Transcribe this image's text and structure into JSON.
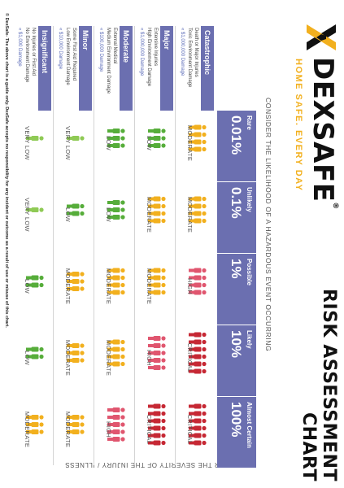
{
  "brand": {
    "name": "DEXSAFE",
    "registered": "®",
    "tagline": "HOME SAFE. EVERY DAY",
    "colors": {
      "accent": "#f2b01e",
      "dark": "#111111"
    }
  },
  "title": "RISK ASSESSMENT CHART",
  "likelihood_heading": "CONSIDER THE LIKELIHOOD OF A HAZARDOUS EVENT OCCURRING",
  "severity_heading": "CONSIDER THE SEVERITY OF THE INJURY / ILLNESS",
  "header_color": "#6b6fb0",
  "likelihood": [
    {
      "label": "Rare",
      "pct": "0.01%"
    },
    {
      "label": "Unlikely",
      "pct": "0.1%"
    },
    {
      "label": "Possible",
      "pct": "1%"
    },
    {
      "label": "Likely",
      "pct": "10%"
    },
    {
      "label": "Almost Certain",
      "pct": "100%"
    }
  ],
  "severity": [
    {
      "label": "Catastrophic",
      "lines": [
        "Death or Major Injuries",
        "Toxic Environment Damage"
      ],
      "damage": "« $1,000,000 Damage"
    },
    {
      "label": "Major",
      "lines": [
        "Extensive Injuries",
        "High Environment Damage"
      ],
      "damage": "« $1,000,000 Damage"
    },
    {
      "label": "Moderate",
      "lines": [
        "External Medical",
        "Medium Environment Damage"
      ],
      "damage": "« $100,000 Damage"
    },
    {
      "label": "Minor",
      "lines": [
        "Some First Aid Required",
        "Low Environment Damage"
      ],
      "damage": "« $10,000 Damage"
    },
    {
      "label": "Insignificant",
      "lines": [
        "No Injuries or First Aid",
        "No Environment Damage"
      ],
      "damage": "« $1,000 Damage"
    }
  ],
  "rating_colors": {
    "CRITICAL": "#c62834",
    "HIGH": "#e0566f",
    "MODERATE": "#f2b01e",
    "LOW": "#56ad3a",
    "VERY LOW": "#8fca55"
  },
  "matrix": [
    [
      {
        "rating": "MODERATE",
        "figures": 4
      },
      {
        "rating": "MODERATE",
        "figures": 4
      },
      {
        "rating": "HIGH",
        "figures": 4
      },
      {
        "rating": "CRITICAL",
        "figures": 6
      },
      {
        "rating": "CRITICAL",
        "figures": 6
      }
    ],
    [
      {
        "rating": "LOW",
        "figures": 3
      },
      {
        "rating": "MODERATE",
        "figures": 4
      },
      {
        "rating": "MODERATE",
        "figures": 4
      },
      {
        "rating": "HIGH",
        "figures": 5
      },
      {
        "rating": "CRITICAL",
        "figures": 6
      }
    ],
    [
      {
        "rating": "LOW",
        "figures": 3
      },
      {
        "rating": "LOW",
        "figures": 3
      },
      {
        "rating": "MODERATE",
        "figures": 4
      },
      {
        "rating": "MODERATE",
        "figures": 4
      },
      {
        "rating": "HIGH",
        "figures": 5
      }
    ],
    [
      {
        "rating": "VERY LOW",
        "figures": 1
      },
      {
        "rating": "LOW",
        "figures": 2
      },
      {
        "rating": "MODERATE",
        "figures": 3
      },
      {
        "rating": "MODERATE",
        "figures": 3
      },
      {
        "rating": "MODERATE",
        "figures": 3
      }
    ],
    [
      {
        "rating": "VERY LOW",
        "figures": 1
      },
      {
        "rating": "VERY LOW",
        "figures": 1
      },
      {
        "rating": "LOW",
        "figures": 2
      },
      {
        "rating": "LOW",
        "figures": 2
      },
      {
        "rating": "MODERATE",
        "figures": 3
      }
    ]
  ],
  "footnote": "© DexSafe- The above chart is a guide only. DexSafe accepts no responsibility for any incident or outcome as a result of use or misuse of this chart."
}
